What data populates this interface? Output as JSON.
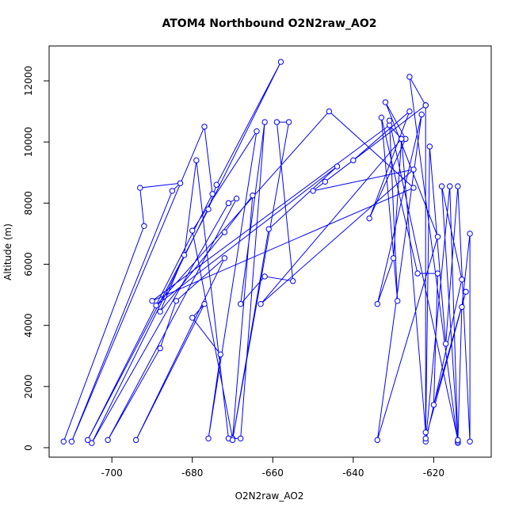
{
  "chart_data": {
    "type": "line",
    "title": "ATOM4 Northbound O2N2raw_AO2",
    "x_label": "O2N2raw_AO2",
    "y_label": "Altitude (m)",
    "color": "#0000ff",
    "markers": true,
    "x": [
      -712,
      -692,
      -693,
      -683,
      -685,
      -710,
      -677,
      -675,
      -706,
      -676,
      -674,
      -658,
      -705,
      -671,
      -669,
      -701,
      -688,
      -684,
      -672,
      -694,
      -677,
      -680,
      -673,
      -676,
      -664,
      -680,
      -670,
      -665,
      -672,
      -688,
      -682,
      -679,
      -671,
      -668,
      -662,
      -668,
      -662,
      -655,
      -659,
      -656,
      -670,
      -661,
      -644,
      -689,
      -646,
      -625,
      -690,
      -631,
      -628,
      -663,
      -625,
      -650,
      -622,
      -647,
      -640,
      -626,
      -636,
      -627,
      -632,
      -619,
      -634,
      -623,
      -634,
      -630,
      -628,
      -622,
      -622,
      -626,
      -614,
      -616,
      -622,
      -613,
      -618,
      -614,
      -613,
      -611,
      -611,
      -614,
      -617,
      -621,
      -622,
      -612,
      -620,
      -619,
      -624,
      -633,
      -629,
      -631,
      -614
    ],
    "values": [
      200,
      7250,
      8500,
      8650,
      8400,
      200,
      10500,
      8300,
      250,
      7800,
      8600,
      12620,
      150,
      8000,
      8150,
      250,
      3250,
      4800,
      6200,
      250,
      4700,
      4250,
      3050,
      300,
      10350,
      7100,
      300,
      8250,
      7050,
      4450,
      6300,
      9400,
      300,
      300,
      10650,
      4700,
      5600,
      5450,
      10650,
      10650,
      250,
      7150,
      9200,
      4650,
      11000,
      8500,
      4800,
      10550,
      10100,
      4700,
      9100,
      8400,
      11200,
      8700,
      9400,
      11000,
      7500,
      10100,
      11300,
      6900,
      250,
      10900,
      4700,
      6200,
      10100,
      500,
      11200,
      12130,
      150,
      8550,
      200,
      5500,
      8550,
      200,
      4600,
      7000,
      200,
      8550,
      3400,
      9850,
      300,
      5100,
      1400,
      5700,
      5700,
      10800,
      4800,
      10700,
      250
    ],
    "xlim": [
      -715.6,
      -605.7
    ],
    "ylim": [
      -311,
      13141
    ],
    "xticks": [
      -700,
      -680,
      -660,
      -640,
      -620
    ],
    "yticks": [
      0,
      2000,
      4000,
      6000,
      8000,
      10000,
      12000
    ]
  }
}
